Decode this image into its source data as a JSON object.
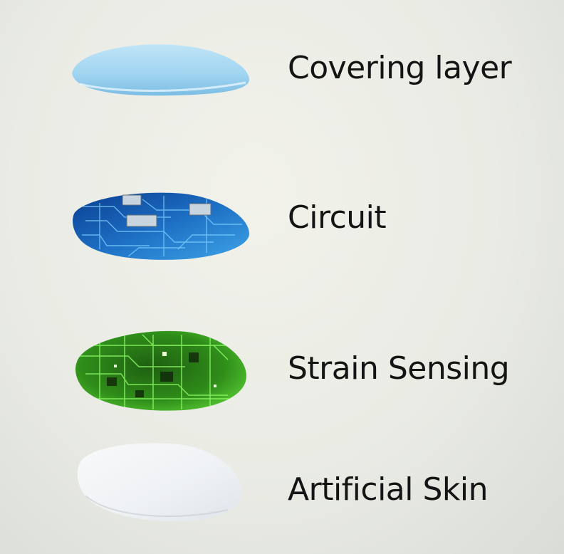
{
  "layers": [
    {
      "label": "Covering layer",
      "color": "#9fd4f0"
    },
    {
      "label": "Circuit",
      "color": "#1d6fc4"
    },
    {
      "label": "Strain Sensing",
      "color": "#3fb81e"
    },
    {
      "label": "Artificial Skin",
      "color": "#eef1f4"
    }
  ]
}
